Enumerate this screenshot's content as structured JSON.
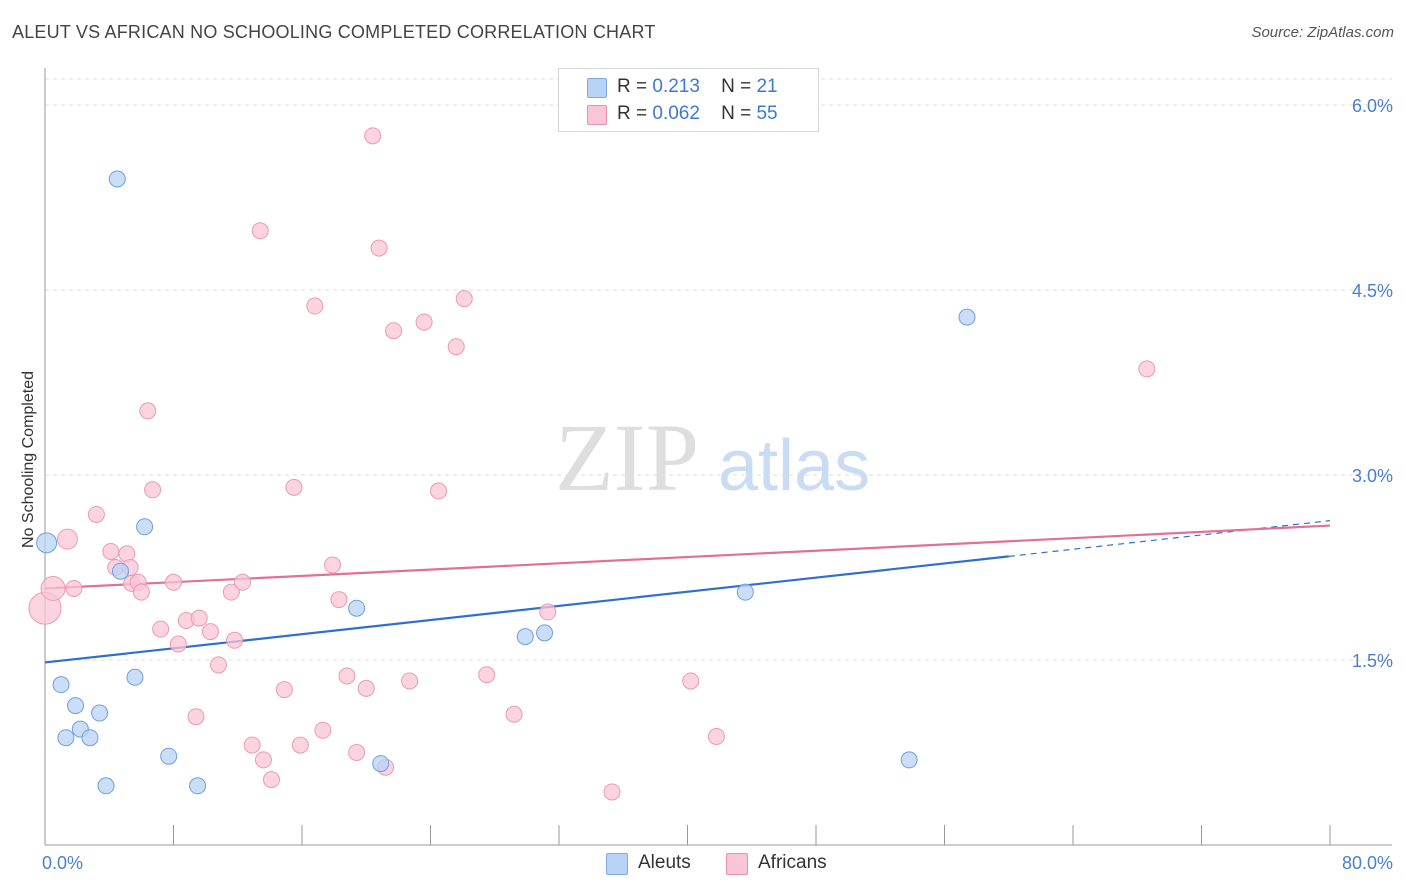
{
  "title": "ALEUT VS AFRICAN NO SCHOOLING COMPLETED CORRELATION CHART",
  "source": "Source: ZipAtlas.com",
  "watermark": {
    "zip": "ZIP",
    "atlas": "atlas"
  },
  "legend_top": [
    {
      "r_label": "R =",
      "r_value": "0.213",
      "n_label": "N =",
      "n_value": "21",
      "color": "#b8d3f5",
      "border": "#7ea9e6"
    },
    {
      "r_label": "R =",
      "r_value": "0.062",
      "n_label": "N =",
      "n_value": "55",
      "color": "#f9c6d6",
      "border": "#ea8fae"
    }
  ],
  "legend_bottom": [
    {
      "label": "Aleuts",
      "color": "#b8d3f5",
      "border": "#7ea9e6"
    },
    {
      "label": "Africans",
      "color": "#f9c6d6",
      "border": "#ea8fae"
    }
  ],
  "chart_data": {
    "type": "scatter",
    "ylabel": "No Schooling Completed",
    "xlim": [
      0,
      80
    ],
    "ylim": [
      0,
      6.3
    ],
    "x_tick_labels": [
      "0.0%",
      "80.0%"
    ],
    "y_ticks": [
      1.5,
      3.0,
      4.5,
      6.0
    ],
    "y_tick_labels": [
      "1.5%",
      "3.0%",
      "4.5%",
      "6.0%"
    ],
    "grid": true,
    "series": [
      {
        "name": "Aleuts",
        "color": "#b8d3f5",
        "stroke": "#6f9fe0",
        "line_color": "#2f6fcf",
        "trend": {
          "x0": 0,
          "y0": 1.48,
          "x1": 60,
          "y1": 2.34,
          "dash_to_x": 80,
          "dash_to_y": 2.63
        },
        "points": [
          [
            0.1,
            2.45,
            10
          ],
          [
            4.5,
            5.4,
            8
          ],
          [
            1.0,
            1.3,
            8
          ],
          [
            1.3,
            0.87,
            8
          ],
          [
            1.9,
            1.13,
            8
          ],
          [
            2.2,
            0.94,
            8
          ],
          [
            2.8,
            0.87,
            8
          ],
          [
            3.4,
            1.07,
            8
          ],
          [
            3.8,
            0.48,
            8
          ],
          [
            4.7,
            2.22,
            8
          ],
          [
            5.6,
            1.36,
            8
          ],
          [
            6.2,
            2.58,
            8
          ],
          [
            7.7,
            0.72,
            8
          ],
          [
            9.5,
            0.48,
            8
          ],
          [
            19.4,
            1.92,
            8
          ],
          [
            20.9,
            0.66,
            8
          ],
          [
            29.9,
            1.69,
            8
          ],
          [
            31.1,
            1.72,
            8
          ],
          [
            43.6,
            2.05,
            8
          ],
          [
            57.4,
            4.28,
            8
          ],
          [
            53.8,
            0.69,
            8
          ]
        ]
      },
      {
        "name": "Africans",
        "color": "#f9c6d6",
        "stroke": "#eb9ab5",
        "line_color": "#e26f97",
        "trend": {
          "x0": 0,
          "y0": 2.08,
          "x1": 80,
          "y1": 2.59
        },
        "points": [
          [
            0.0,
            1.92,
            16
          ],
          [
            0.5,
            2.08,
            12
          ],
          [
            1.4,
            2.48,
            10
          ],
          [
            1.8,
            2.08,
            8
          ],
          [
            3.2,
            2.68,
            8
          ],
          [
            4.1,
            2.38,
            8
          ],
          [
            4.4,
            2.25,
            8
          ],
          [
            5.1,
            2.36,
            8
          ],
          [
            5.4,
            2.12,
            8
          ],
          [
            5.8,
            2.13,
            8
          ],
          [
            6.0,
            2.05,
            8
          ],
          [
            6.4,
            3.52,
            8
          ],
          [
            6.7,
            2.88,
            8
          ],
          [
            7.2,
            1.75,
            8
          ],
          [
            8.0,
            2.13,
            8
          ],
          [
            8.3,
            1.63,
            8
          ],
          [
            8.8,
            1.82,
            8
          ],
          [
            9.4,
            1.04,
            8
          ],
          [
            9.6,
            1.84,
            8
          ],
          [
            10.3,
            1.73,
            8
          ],
          [
            10.8,
            1.46,
            8
          ],
          [
            11.6,
            2.05,
            8
          ],
          [
            11.8,
            1.66,
            8
          ],
          [
            12.3,
            2.13,
            8
          ],
          [
            12.9,
            0.81,
            8
          ],
          [
            13.4,
            4.98,
            8
          ],
          [
            13.6,
            0.69,
            8
          ],
          [
            14.1,
            0.53,
            8
          ],
          [
            14.9,
            1.26,
            8
          ],
          [
            15.5,
            2.9,
            8
          ],
          [
            15.9,
            0.81,
            8
          ],
          [
            16.8,
            4.37,
            8
          ],
          [
            17.3,
            0.93,
            8
          ],
          [
            17.9,
            2.27,
            8
          ],
          [
            18.3,
            1.99,
            8
          ],
          [
            18.8,
            1.37,
            8
          ],
          [
            19.4,
            0.75,
            8
          ],
          [
            20.0,
            1.27,
            8
          ],
          [
            20.4,
            5.75,
            8
          ],
          [
            20.8,
            4.84,
            8
          ],
          [
            21.2,
            0.63,
            8
          ],
          [
            21.7,
            4.17,
            8
          ],
          [
            22.7,
            1.33,
            8
          ],
          [
            23.6,
            4.24,
            8
          ],
          [
            24.5,
            2.87,
            8
          ],
          [
            25.6,
            4.04,
            8
          ],
          [
            26.1,
            4.43,
            8
          ],
          [
            27.5,
            1.38,
            8
          ],
          [
            29.2,
            1.06,
            8
          ],
          [
            31.3,
            1.89,
            8
          ],
          [
            35.3,
            0.43,
            8
          ],
          [
            40.2,
            1.33,
            8
          ],
          [
            41.8,
            0.88,
            8
          ],
          [
            68.6,
            3.86,
            8
          ],
          [
            5.3,
            2.25,
            8
          ]
        ]
      }
    ]
  }
}
